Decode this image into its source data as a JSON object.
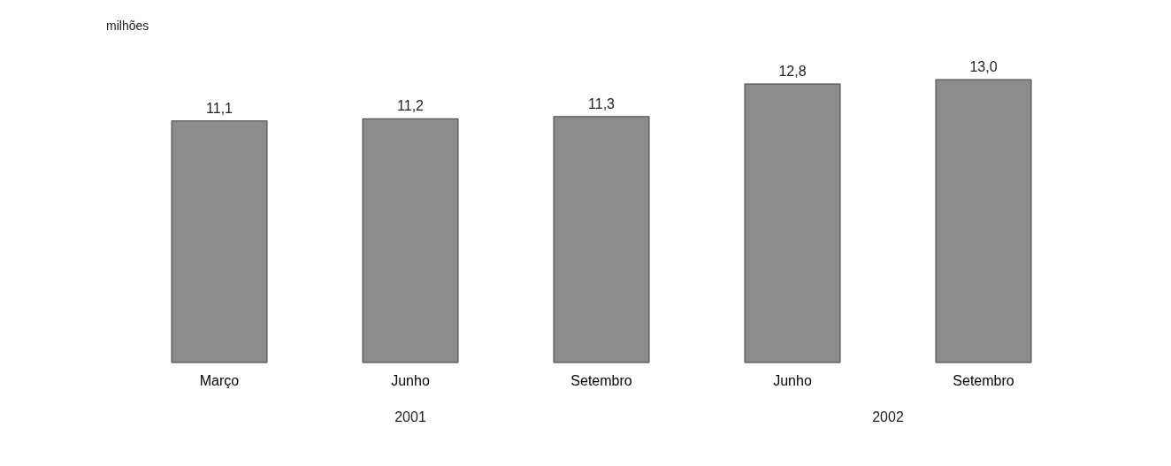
{
  "chart_data": {
    "type": "bar",
    "categories": [
      "Março",
      "Junho",
      "Setembro",
      "Junho",
      "Setembro"
    ],
    "values": [
      11.1,
      11.2,
      11.3,
      12.8,
      13.0
    ],
    "value_labels": [
      "11,1",
      "11,2",
      "11,3",
      "12,8",
      "13,0"
    ],
    "color": "#8c8c8c",
    "annotations": [
      "milhões",
      "2001",
      "2002"
    ]
  }
}
